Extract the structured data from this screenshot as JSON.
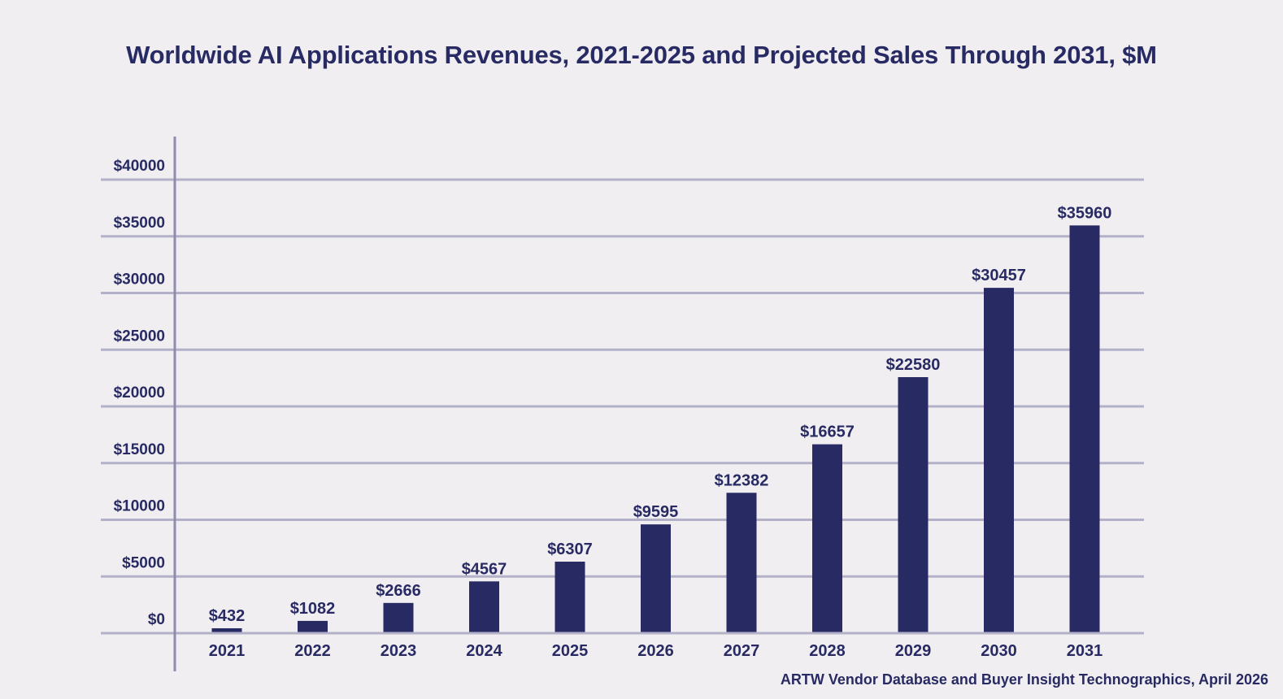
{
  "chart_data": {
    "type": "bar",
    "title": "Worldwide AI Applications Revenues, 2021-2025 and Projected Sales Through 2031, $M",
    "categories": [
      "2021",
      "2022",
      "2023",
      "2024",
      "2025",
      "2026",
      "2027",
      "2028",
      "2029",
      "2030",
      "2031"
    ],
    "values": [
      432,
      1082,
      2666,
      4567,
      6307,
      9595,
      12382,
      16657,
      22580,
      30457,
      35960
    ],
    "data_labels": [
      "$432",
      "$1082",
      "$2666",
      "$4567",
      "$6307",
      "$9595",
      "$12382",
      "$16657",
      "$22580",
      "$30457",
      "$35960"
    ],
    "y_ticks": [
      0,
      5000,
      10000,
      15000,
      20000,
      25000,
      30000,
      35000,
      40000
    ],
    "y_tick_labels": [
      "$0",
      "$5000",
      "$10000",
      "$15000",
      "$20000",
      "$25000",
      "$30000",
      "$35000",
      "$40000"
    ],
    "ylim": [
      0,
      40000
    ],
    "xlabel": "",
    "ylabel": "",
    "grid": true,
    "legend": "none",
    "source": "ARTW Vendor Database and Buyer Insight Technographics, April 2026",
    "colors": {
      "bar": "#282b63",
      "grid": "#b3b1c8",
      "background": "#f1eef2",
      "text": "#282b63"
    }
  }
}
